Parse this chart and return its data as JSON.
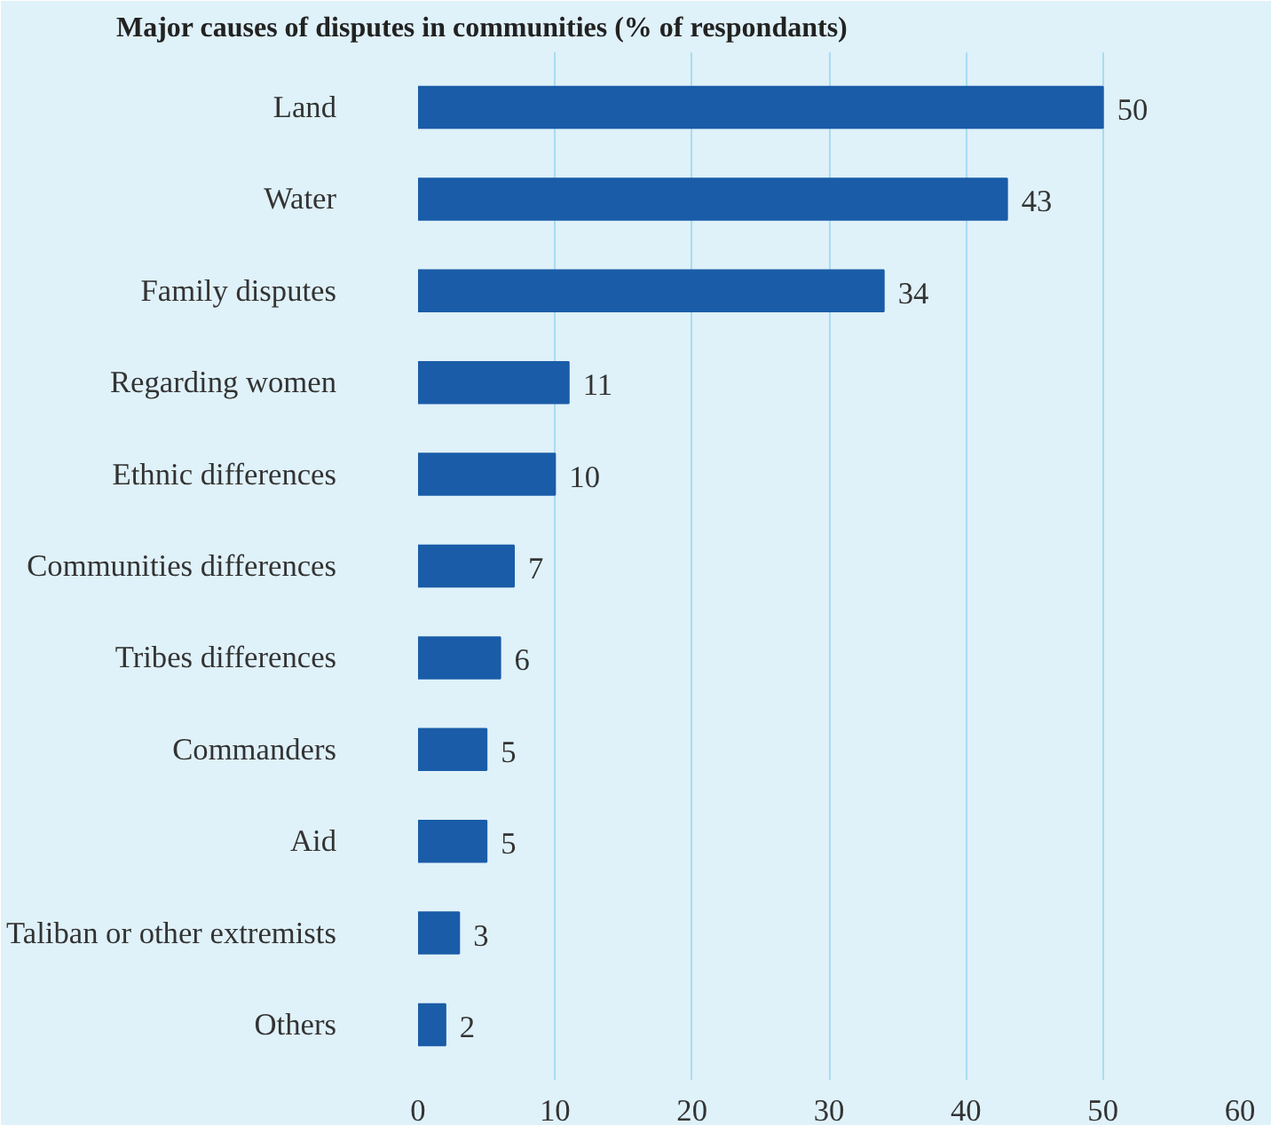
{
  "chart_data": {
    "type": "bar",
    "orientation": "horizontal",
    "title": "Major causes of disputes in communities (% of respondants)",
    "categories": [
      "Land",
      "Water",
      "Family disputes",
      "Regarding women",
      "Ethnic differences",
      "Communities differences",
      "Tribes differences",
      "Commanders",
      "Aid",
      "Taliban or other extremists",
      "Others"
    ],
    "values": [
      50,
      43,
      34,
      11,
      10,
      7,
      6,
      5,
      5,
      3,
      2
    ],
    "color": "#1a5ca8",
    "xlim": [
      0,
      60
    ],
    "xticks": [
      0,
      10,
      20,
      30,
      40,
      50,
      60
    ],
    "grid": "x",
    "data_labels": true
  }
}
